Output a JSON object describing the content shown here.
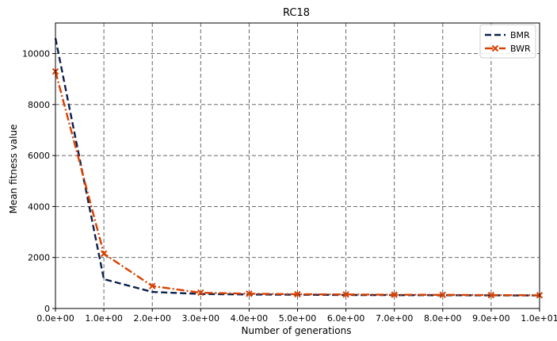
{
  "chart_data": {
    "type": "line",
    "title": "RC18",
    "xlabel": "Number of generations",
    "ylabel": "Mean fitness value",
    "xlim": [
      0,
      10
    ],
    "ylim": [
      0,
      11200
    ],
    "grid": true,
    "legend_placement": "top-right",
    "x": [
      0,
      1,
      2,
      3,
      4,
      5,
      6,
      7,
      8,
      9,
      10
    ],
    "x_tick_labels": [
      "0.0e+00",
      "1.0e+00",
      "2.0e+00",
      "3.0e+00",
      "4.0e+00",
      "5.0e+00",
      "6.0e+00",
      "7.0e+00",
      "8.0e+00",
      "9.0e+00",
      "1.0e+01"
    ],
    "y_ticks": [
      0,
      2000,
      4000,
      6000,
      8000,
      10000
    ],
    "y_tick_labels": [
      "0",
      "2000",
      "4000",
      "6000",
      "8000",
      "10000"
    ],
    "series": [
      {
        "name": "BMR",
        "color": "#0b1f4d",
        "style": "dashed",
        "marker": "none",
        "values": [
          10600,
          1150,
          650,
          570,
          550,
          540,
          530,
          525,
          520,
          515,
          510
        ]
      },
      {
        "name": "BWR",
        "color": "#d94100",
        "style": "dashdot",
        "marker": "x",
        "values": [
          9300,
          2150,
          880,
          620,
          580,
          560,
          550,
          540,
          535,
          525,
          520
        ]
      }
    ]
  }
}
